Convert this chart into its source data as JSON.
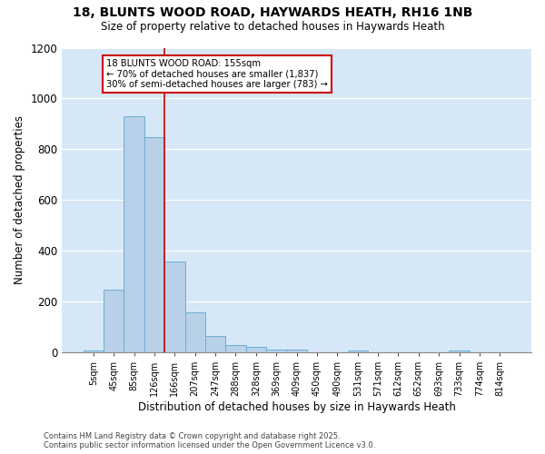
{
  "title_line1": "18, BLUNTS WOOD ROAD, HAYWARDS HEATH, RH16 1NB",
  "title_line2": "Size of property relative to detached houses in Haywards Heath",
  "xlabel": "Distribution of detached houses by size in Haywards Heath",
  "ylabel": "Number of detached properties",
  "categories": [
    "5sqm",
    "45sqm",
    "85sqm",
    "126sqm",
    "166sqm",
    "207sqm",
    "247sqm",
    "288sqm",
    "328sqm",
    "369sqm",
    "409sqm",
    "450sqm",
    "490sqm",
    "531sqm",
    "571sqm",
    "612sqm",
    "652sqm",
    "693sqm",
    "733sqm",
    "774sqm",
    "814sqm"
  ],
  "values": [
    8,
    248,
    930,
    848,
    358,
    158,
    65,
    30,
    20,
    12,
    10,
    0,
    0,
    8,
    0,
    0,
    0,
    0,
    8,
    0,
    0
  ],
  "bar_color": "#b8d0e8",
  "bar_edge_color": "#6baed6",
  "grid_color": "#ffffff",
  "bg_color": "#d6e8f7",
  "annotation_box_color": "#cc0000",
  "annotation_text": [
    "18 BLUNTS WOOD ROAD: 155sqm",
    "← 70% of detached houses are smaller (1,837)",
    "30% of semi-detached houses are larger (783) →"
  ],
  "property_line_x": 3.5,
  "ylim": [
    0,
    1200
  ],
  "yticks": [
    0,
    200,
    400,
    600,
    800,
    1000,
    1200
  ],
  "footer_line1": "Contains HM Land Registry data © Crown copyright and database right 2025.",
  "footer_line2": "Contains public sector information licensed under the Open Government Licence v3.0."
}
